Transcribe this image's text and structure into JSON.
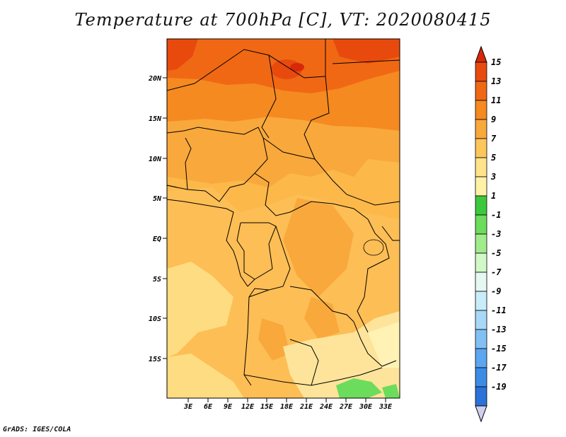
{
  "title": "Temperature at 700hPa [C], VT: 2020080415",
  "credit": "GrADS: IGES/COLA",
  "map": {
    "lat_ticks": [
      "20N",
      "15N",
      "10N",
      "5N",
      "EQ",
      "5S",
      "10S",
      "15S"
    ],
    "lon_ticks": [
      "3E",
      "6E",
      "9E",
      "12E",
      "15E",
      "18E",
      "21E",
      "24E",
      "27E",
      "30E",
      "33E"
    ]
  },
  "colorbar": {
    "labels": [
      "15",
      "13",
      "11",
      "9",
      "7",
      "5",
      "3",
      "1",
      "-1",
      "-3",
      "-5",
      "-7",
      "-9",
      "-11",
      "-13",
      "-15",
      "-17",
      "-19"
    ],
    "colors": [
      "#ffffff",
      "#cfcfef",
      "#0a0a6e",
      "#1440a0",
      "#1e5cc8",
      "#2a72d8",
      "#3c8ce6",
      "#5aa6f0",
      "#82c0f4",
      "#a8d8f8",
      "#c8ecfa",
      "#e6f8f2",
      "#d2f8c8",
      "#a0ec8c",
      "#6cdc5c",
      "#3cc83c",
      "#fff2a6",
      "#ffe48a",
      "#fdc65a",
      "#f9a83c",
      "#f58a20",
      "#f06814",
      "#e84a0e",
      "#d8280a"
    ]
  }
}
